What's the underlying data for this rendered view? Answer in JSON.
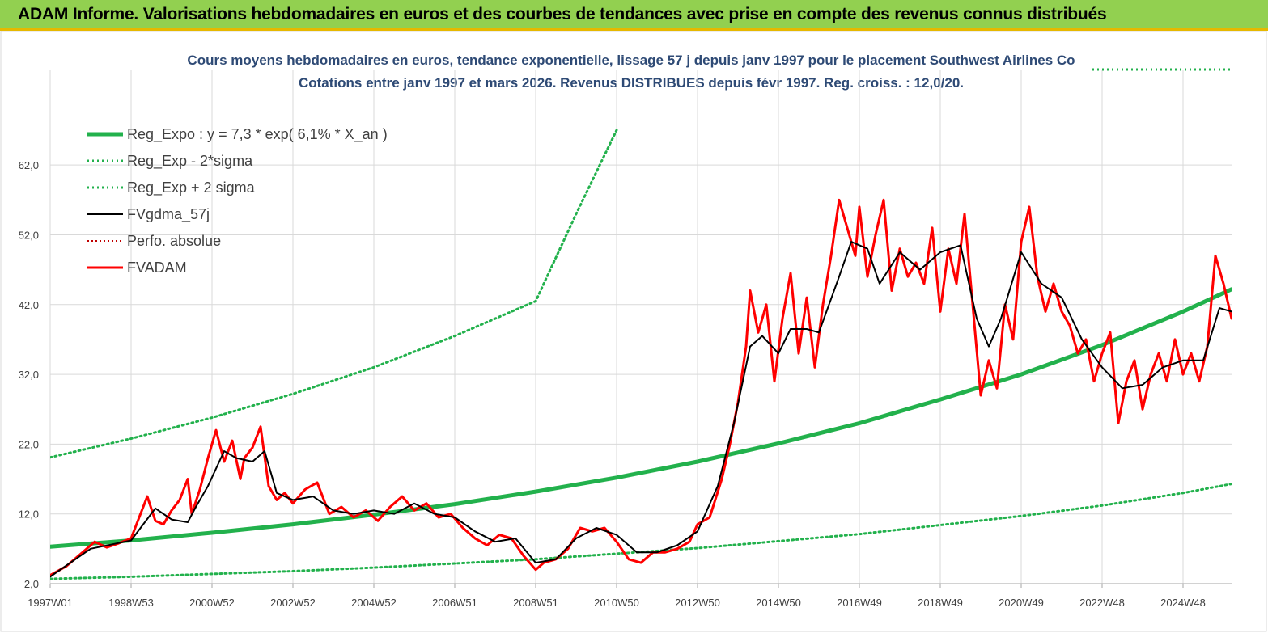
{
  "banner": {
    "title": "ADAM Informe. Valorisations hebdomadaires en euros et des courbes de tendances avec prise en compte des revenus connus distribués"
  },
  "colors": {
    "banner_bg": "#92d050",
    "banner_border": "#e6b800",
    "reg_expo": "#22b14c",
    "reg_bands": "#22b14c",
    "smooth": "#000000",
    "perfo": "#c00000",
    "adam": "#ff0000",
    "title_text": "#2e4a75"
  },
  "chart_data": {
    "type": "line",
    "title": "Cours moyens hebdomadaires en euros, tendance exponentielle, lissage 57 j depuis janv 1997 pour le placement Southwest Airlines Co",
    "subtitle": "Cotations entre janv 1997 et mars 2026. Revenus DISTRIBUES depuis févr 1997. Reg. croiss. : 12,0/20.",
    "xlabel": "",
    "ylabel": "",
    "ylim": [
      2.0,
      67.0
    ],
    "xlim": [
      1997.0,
      2026.2
    ],
    "grid": true,
    "legend_position": "top-left",
    "x_ticks": [
      {
        "x": 1997.0,
        "label": "1997W01"
      },
      {
        "x": 1999.0,
        "label": "1998W53"
      },
      {
        "x": 2001.0,
        "label": "2000W52"
      },
      {
        "x": 2003.0,
        "label": "2002W52"
      },
      {
        "x": 2005.0,
        "label": "2004W52"
      },
      {
        "x": 2007.0,
        "label": "2006W51"
      },
      {
        "x": 2009.0,
        "label": "2008W51"
      },
      {
        "x": 2011.0,
        "label": "2010W50"
      },
      {
        "x": 2013.0,
        "label": "2012W50"
      },
      {
        "x": 2015.0,
        "label": "2014W50"
      },
      {
        "x": 2017.0,
        "label": "2016W49"
      },
      {
        "x": 2019.0,
        "label": "2018W49"
      },
      {
        "x": 2021.0,
        "label": "2020W49"
      },
      {
        "x": 2023.0,
        "label": "2022W48"
      },
      {
        "x": 2025.0,
        "label": "2024W48"
      }
    ],
    "y_ticks": [
      {
        "y": 2,
        "label": "2,0"
      },
      {
        "y": 12,
        "label": "12,0"
      },
      {
        "y": 22,
        "label": "22,0"
      },
      {
        "y": 32,
        "label": "32,0"
      },
      {
        "y": 42,
        "label": "42,0"
      },
      {
        "y": 52,
        "label": "52,0"
      },
      {
        "y": 62,
        "label": "62,0"
      }
    ],
    "series": [
      {
        "name": "Reg_Expo : y = 7,3 * exp( 6,1% *  X_an )",
        "style": "solid-thick",
        "x": [
          1997.0,
          1999.0,
          2001.0,
          2003.0,
          2005.0,
          2007.0,
          2009.0,
          2011.0,
          2013.0,
          2015.0,
          2017.0,
          2019.0,
          2021.0,
          2023.0,
          2025.0,
          2026.2
        ],
        "values": [
          7.3,
          8.2,
          9.3,
          10.5,
          11.9,
          13.4,
          15.2,
          17.2,
          19.5,
          22.1,
          25.0,
          28.4,
          32.0,
          36.2,
          41.0,
          44.2
        ]
      },
      {
        "name": "Reg_Exp - 2*sigma",
        "style": "dotted",
        "x": [
          1997.0,
          1999.0,
          2001.0,
          2003.0,
          2005.0,
          2007.0,
          2009.0,
          2011.0,
          2013.0,
          2015.0,
          2017.0,
          2019.0,
          2021.0,
          2023.0,
          2025.0,
          2026.2
        ],
        "values": [
          2.7,
          3.0,
          3.4,
          3.8,
          4.3,
          4.9,
          5.5,
          6.3,
          7.1,
          8.1,
          9.1,
          10.4,
          11.7,
          13.2,
          15.0,
          16.3
        ]
      },
      {
        "name": "Reg_Exp + 2 sigma",
        "style": "dotted",
        "x": [
          1997.0,
          1999.0,
          2001.0,
          2003.0,
          2005.0,
          2007.0,
          2009.0,
          2010.0,
          2011.0
        ],
        "values": [
          20.1,
          22.8,
          25.8,
          29.2,
          33.0,
          37.5,
          42.5,
          55.0,
          67.0
        ]
      },
      {
        "name": "FVgdma_57j",
        "style": "solid-thin",
        "x": [
          1997.0,
          1997.5,
          1998.0,
          1998.5,
          1999.0,
          1999.3,
          1999.6,
          2000.0,
          2000.4,
          2000.6,
          2000.9,
          2001.3,
          2001.6,
          2002.0,
          2002.3,
          2002.6,
          2003.0,
          2003.5,
          2004.0,
          2004.5,
          2005.0,
          2005.5,
          2006.0,
          2006.5,
          2007.0,
          2007.5,
          2008.0,
          2008.5,
          2009.0,
          2009.5,
          2010.0,
          2010.5,
          2011.0,
          2011.5,
          2012.0,
          2012.5,
          2013.0,
          2013.5,
          2013.9,
          2014.3,
          2014.6,
          2015.0,
          2015.3,
          2015.7,
          2016.0,
          2016.5,
          2016.8,
          2017.2,
          2017.5,
          2018.0,
          2018.5,
          2019.0,
          2019.5,
          2019.9,
          2020.2,
          2020.5,
          2021.0,
          2021.5,
          2022.0,
          2022.5,
          2023.0,
          2023.5,
          2024.0,
          2024.5,
          2025.0,
          2025.5,
          2025.9,
          2026.2
        ],
        "values": [
          3.0,
          5.0,
          7.0,
          7.6,
          8.2,
          10.5,
          12.8,
          11.2,
          10.8,
          13.0,
          16.0,
          21.0,
          20.0,
          19.5,
          21.0,
          15.0,
          14.0,
          14.5,
          12.5,
          12.0,
          12.5,
          12.0,
          13.5,
          12.0,
          11.5,
          9.5,
          8.0,
          8.5,
          5.0,
          5.5,
          8.5,
          10.0,
          9.0,
          6.5,
          6.5,
          7.5,
          9.5,
          16.0,
          25.0,
          36.0,
          37.5,
          35.0,
          38.5,
          38.5,
          38.0,
          46.0,
          51.0,
          50.0,
          45.0,
          49.5,
          47.0,
          49.5,
          50.5,
          40.0,
          36.0,
          40.0,
          49.5,
          45.0,
          43.0,
          37.0,
          33.0,
          30.0,
          30.5,
          33.0,
          34.0,
          34.0,
          41.5,
          41.0
        ]
      },
      {
        "name": "Perfo. absolue",
        "style": "dotted-red",
        "x": [],
        "values": []
      },
      {
        "name": "FVADAM",
        "style": "solid-red",
        "x": [
          1997.0,
          1997.4,
          1997.8,
          1998.1,
          1998.4,
          1998.7,
          1999.0,
          1999.2,
          1999.4,
          1999.6,
          1999.8,
          2000.0,
          2000.2,
          2000.4,
          2000.5,
          2000.7,
          2000.9,
          2001.1,
          2001.3,
          2001.5,
          2001.7,
          2001.8,
          2002.0,
          2002.2,
          2002.4,
          2002.6,
          2002.8,
          2003.0,
          2003.3,
          2003.6,
          2003.9,
          2004.2,
          2004.5,
          2004.8,
          2005.1,
          2005.4,
          2005.7,
          2006.0,
          2006.3,
          2006.6,
          2006.9,
          2007.2,
          2007.5,
          2007.8,
          2008.1,
          2008.4,
          2008.7,
          2009.0,
          2009.2,
          2009.5,
          2009.8,
          2010.1,
          2010.4,
          2010.7,
          2011.0,
          2011.3,
          2011.6,
          2011.9,
          2012.2,
          2012.5,
          2012.8,
          2013.0,
          2013.3,
          2013.6,
          2013.8,
          2014.0,
          2014.2,
          2014.3,
          2014.5,
          2014.7,
          2014.9,
          2015.1,
          2015.3,
          2015.5,
          2015.7,
          2015.9,
          2016.1,
          2016.3,
          2016.5,
          2016.7,
          2016.9,
          2017.0,
          2017.2,
          2017.4,
          2017.6,
          2017.8,
          2018.0,
          2018.2,
          2018.4,
          2018.6,
          2018.8,
          2019.0,
          2019.2,
          2019.4,
          2019.6,
          2019.8,
          2020.0,
          2020.2,
          2020.4,
          2020.6,
          2020.8,
          2021.0,
          2021.2,
          2021.4,
          2021.6,
          2021.8,
          2022.0,
          2022.2,
          2022.4,
          2022.6,
          2022.8,
          2023.0,
          2023.2,
          2023.4,
          2023.6,
          2023.8,
          2024.0,
          2024.2,
          2024.4,
          2024.6,
          2024.8,
          2025.0,
          2025.2,
          2025.4,
          2025.6,
          2025.8,
          2026.0,
          2026.2
        ],
        "values": [
          3.2,
          4.5,
          6.5,
          8.0,
          7.2,
          7.8,
          8.5,
          11.5,
          14.5,
          11.0,
          10.5,
          12.5,
          14.0,
          17.0,
          12.0,
          15.5,
          20.0,
          24.0,
          19.5,
          22.5,
          17.0,
          20.0,
          21.5,
          24.5,
          16.0,
          14.0,
          15.0,
          13.5,
          15.5,
          16.5,
          12.0,
          13.0,
          11.5,
          12.5,
          11.0,
          13.0,
          14.5,
          12.5,
          13.5,
          11.5,
          12.0,
          10.0,
          8.5,
          7.5,
          9.0,
          8.5,
          6.0,
          4.0,
          5.0,
          5.5,
          7.0,
          10.0,
          9.5,
          10.0,
          8.0,
          5.5,
          5.0,
          6.5,
          6.5,
          7.0,
          8.0,
          10.5,
          11.5,
          17.0,
          22.0,
          28.0,
          36.0,
          44.0,
          38.0,
          42.0,
          31.0,
          40.0,
          46.5,
          35.0,
          43.0,
          33.0,
          42.0,
          49.0,
          57.0,
          53.0,
          49.0,
          56.0,
          46.0,
          52.0,
          57.0,
          44.0,
          50.0,
          46.0,
          48.0,
          45.0,
          53.0,
          41.0,
          50.0,
          45.0,
          55.0,
          42.0,
          29.0,
          34.0,
          30.0,
          42.0,
          37.0,
          51.0,
          56.0,
          46.0,
          41.0,
          45.0,
          41.0,
          39.0,
          35.0,
          37.0,
          31.0,
          35.0,
          38.0,
          25.0,
          31.0,
          34.0,
          27.0,
          32.0,
          35.0,
          31.0,
          37.0,
          32.0,
          35.0,
          31.0,
          36.0,
          49.0,
          45.0,
          40.0
        ]
      }
    ]
  }
}
